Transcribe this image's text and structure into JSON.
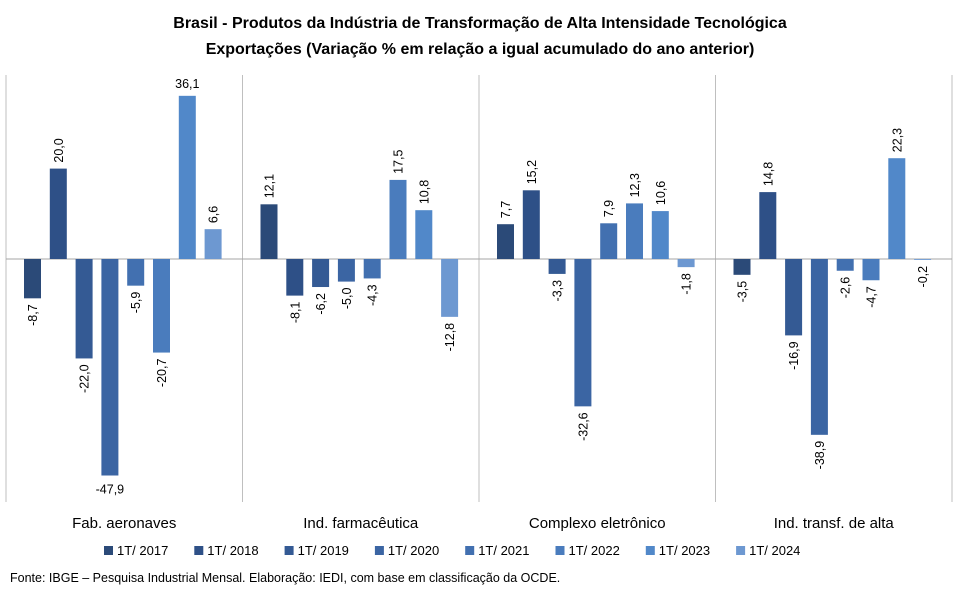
{
  "chart_data": {
    "type": "bar",
    "title": "Brasil - Produtos da Indústria de Transformação de Alta Intensidade Tecnológica",
    "subtitle": "Exportações (Variação % em relação a igual acumulado do ano anterior)",
    "categories": [
      "Fab. aeronaves",
      "Ind. farmacêutica",
      "Complexo eletrônico",
      "Ind. transf. de alta"
    ],
    "series": [
      {
        "name": "1T/ 2017",
        "color": "#2b4a78",
        "values": [
          -8.7,
          12.1,
          7.7,
          -3.5
        ],
        "labels": [
          "-8,7",
          "12,1",
          "7,7",
          "-3,5"
        ]
      },
      {
        "name": "1T/ 2018",
        "color": "#2e5087",
        "values": [
          20.0,
          -8.1,
          15.2,
          14.8
        ],
        "labels": [
          "20,0",
          "-8,1",
          "15,2",
          "14,8"
        ]
      },
      {
        "name": "1T/ 2019",
        "color": "#345a94",
        "values": [
          -22.0,
          -6.2,
          -3.3,
          -16.9
        ],
        "labels": [
          "-22,0",
          "-6,2",
          "-3,3",
          "-16,9"
        ]
      },
      {
        "name": "1T/ 2020",
        "color": "#3b65a3",
        "values": [
          -47.9,
          -5.0,
          -32.6,
          -38.9
        ],
        "labels": [
          "-47,9",
          "-5,0",
          "-32,6",
          "-38,9"
        ]
      },
      {
        "name": "1T/ 2021",
        "color": "#4270b0",
        "values": [
          -5.9,
          -4.3,
          7.9,
          -2.6
        ],
        "labels": [
          "-5,9",
          "-4,3",
          "7,9",
          "-2,6"
        ]
      },
      {
        "name": "1T/ 2022",
        "color": "#4a7cbd",
        "values": [
          -20.7,
          17.5,
          12.3,
          -4.7
        ],
        "labels": [
          "-20,7",
          "17,5",
          "12,3",
          "-4,7"
        ]
      },
      {
        "name": "1T/ 2023",
        "color": "#5188c9",
        "values": [
          36.1,
          10.8,
          10.6,
          22.3
        ],
        "labels": [
          "36,1",
          "10,8",
          "10,6",
          "22,3"
        ]
      },
      {
        "name": "1T/ 2024",
        "color": "#6d98d1",
        "values": [
          6.6,
          -12.8,
          -1.8,
          -0.2
        ],
        "labels": [
          "6,6",
          "-12,8",
          "-1,8",
          "-0,2"
        ]
      }
    ],
    "ylim": [
      -50,
      40
    ],
    "grid": false,
    "legend": "bottom",
    "data_labels": true
  },
  "source": "Fonte: IBGE – Pesquisa Industrial Mensal. Elaboração: IEDI, com base em classificação da OCDE."
}
